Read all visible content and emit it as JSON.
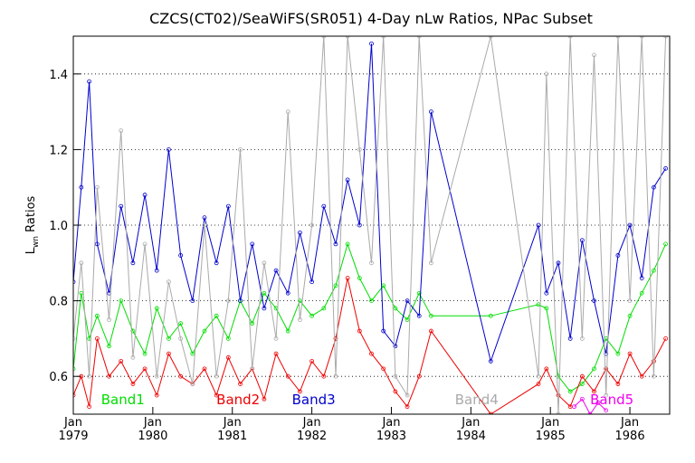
{
  "chart_data": {
    "type": "line",
    "title": "CZCS(CT02)/SeaWiFS(SR051) 4-Day nLw Ratios, NPac Subset",
    "ylabel_main": "L",
    "ylabel_sub": "wn",
    "ylabel_rest": " Ratios",
    "ylim": [
      0.5,
      1.5
    ],
    "xlim": [
      1979.0,
      1986.5
    ],
    "yticks": [
      {
        "value": 0.6,
        "label": "0.6"
      },
      {
        "value": 0.8,
        "label": "0.8"
      },
      {
        "value": 1.0,
        "label": "1.0"
      },
      {
        "value": 1.2,
        "label": "1.2"
      },
      {
        "value": 1.4,
        "label": "1.4"
      }
    ],
    "xticks": [
      {
        "value": 1979,
        "month": "Jan",
        "year": "1979"
      },
      {
        "value": 1980,
        "month": "Jan",
        "year": "1980"
      },
      {
        "value": 1981,
        "month": "Jan",
        "year": "1981"
      },
      {
        "value": 1982,
        "month": "Jan",
        "year": "1982"
      },
      {
        "value": 1983,
        "month": "Jan",
        "year": "1983"
      },
      {
        "value": 1984,
        "month": "Jan",
        "year": "1984"
      },
      {
        "value": 1985,
        "month": "Jan",
        "year": "1985"
      },
      {
        "value": 1986,
        "month": "Jan",
        "year": "1986"
      }
    ],
    "grid": true,
    "series": [
      {
        "name": "Band1",
        "color": "#00dd00",
        "legend_x": 1979.35,
        "x": [
          1979.0,
          1979.1,
          1979.2,
          1979.3,
          1979.45,
          1979.6,
          1979.75,
          1979.9,
          1980.05,
          1980.2,
          1980.35,
          1980.5,
          1980.65,
          1980.8,
          1980.95,
          1981.1,
          1981.25,
          1981.4,
          1981.55,
          1981.7,
          1981.85,
          1982.0,
          1982.15,
          1982.3,
          1982.45,
          1982.6,
          1982.75,
          1982.9,
          1983.05,
          1983.2,
          1983.35,
          1983.5,
          1984.25,
          1984.85,
          1984.95,
          1985.1,
          1985.25,
          1985.4,
          1985.55,
          1985.7,
          1985.85,
          1986.0,
          1986.15,
          1986.3,
          1986.45
        ],
        "y": [
          0.62,
          0.82,
          0.7,
          0.76,
          0.68,
          0.8,
          0.72,
          0.66,
          0.78,
          0.7,
          0.74,
          0.66,
          0.72,
          0.76,
          0.7,
          0.8,
          0.74,
          0.82,
          0.78,
          0.72,
          0.8,
          0.76,
          0.78,
          0.84,
          0.95,
          0.86,
          0.8,
          0.84,
          0.78,
          0.75,
          0.82,
          0.76,
          0.76,
          0.79,
          0.78,
          0.6,
          0.56,
          0.58,
          0.62,
          0.7,
          0.66,
          0.76,
          0.82,
          0.88,
          0.95
        ]
      },
      {
        "name": "Band2",
        "color": "#ee0000",
        "legend_x": 1980.8,
        "x": [
          1979.0,
          1979.1,
          1979.2,
          1979.3,
          1979.45,
          1979.6,
          1979.75,
          1979.9,
          1980.05,
          1980.2,
          1980.35,
          1980.5,
          1980.65,
          1980.8,
          1980.95,
          1981.1,
          1981.25,
          1981.4,
          1981.55,
          1981.7,
          1981.85,
          1982.0,
          1982.15,
          1982.3,
          1982.45,
          1982.6,
          1982.75,
          1982.9,
          1983.05,
          1983.2,
          1983.35,
          1983.5,
          1984.25,
          1984.85,
          1984.95,
          1985.1,
          1985.25,
          1985.4,
          1985.55,
          1985.7,
          1985.85,
          1986.0,
          1986.15,
          1986.3,
          1986.45
        ],
        "y": [
          0.55,
          0.6,
          0.52,
          0.7,
          0.6,
          0.64,
          0.58,
          0.62,
          0.55,
          0.66,
          0.6,
          0.58,
          0.62,
          0.55,
          0.65,
          0.58,
          0.62,
          0.54,
          0.66,
          0.6,
          0.56,
          0.64,
          0.6,
          0.7,
          0.86,
          0.72,
          0.66,
          0.62,
          0.56,
          0.52,
          0.6,
          0.72,
          0.5,
          0.58,
          0.62,
          0.55,
          0.52,
          0.6,
          0.56,
          0.62,
          0.58,
          0.66,
          0.6,
          0.64,
          0.7
        ]
      },
      {
        "name": "Band3",
        "color": "#0000cc",
        "legend_x": 1981.75,
        "x": [
          1979.0,
          1979.1,
          1979.2,
          1979.3,
          1979.45,
          1979.6,
          1979.75,
          1979.9,
          1980.05,
          1980.2,
          1980.35,
          1980.5,
          1980.65,
          1980.8,
          1980.95,
          1981.1,
          1981.25,
          1981.4,
          1981.55,
          1981.7,
          1981.85,
          1982.0,
          1982.15,
          1982.3,
          1982.45,
          1982.6,
          1982.75,
          1982.9,
          1983.05,
          1983.2,
          1983.35,
          1983.5,
          1984.25,
          1984.85,
          1984.95,
          1985.1,
          1985.25,
          1985.4,
          1985.55,
          1985.7,
          1985.85,
          1986.0,
          1986.15,
          1986.3,
          1986.45
        ],
        "y": [
          0.85,
          1.1,
          1.38,
          0.95,
          0.82,
          1.05,
          0.9,
          1.08,
          0.88,
          1.2,
          0.92,
          0.8,
          1.02,
          0.9,
          1.05,
          0.8,
          0.95,
          0.78,
          0.88,
          0.82,
          0.98,
          0.85,
          1.05,
          0.95,
          1.12,
          1.0,
          1.48,
          0.72,
          0.68,
          0.8,
          0.76,
          1.3,
          0.64,
          1.0,
          0.82,
          0.9,
          0.7,
          0.96,
          0.8,
          0.66,
          0.92,
          1.0,
          0.86,
          1.1,
          1.15
        ]
      },
      {
        "name": "Band4",
        "color": "#aaaaaa",
        "legend_x": 1983.8,
        "x": [
          1979.0,
          1979.1,
          1979.2,
          1979.3,
          1979.45,
          1979.6,
          1979.75,
          1979.9,
          1980.05,
          1980.2,
          1980.35,
          1980.5,
          1980.65,
          1980.8,
          1980.95,
          1981.1,
          1981.25,
          1981.4,
          1981.55,
          1981.7,
          1981.85,
          1982.0,
          1982.15,
          1982.3,
          1982.45,
          1982.6,
          1982.75,
          1982.9,
          1983.05,
          1983.2,
          1983.35,
          1983.5,
          1984.25,
          1984.85,
          1984.95,
          1985.1,
          1985.25,
          1985.4,
          1985.55,
          1985.7,
          1985.85,
          1986.0,
          1986.15,
          1986.3,
          1986.45
        ],
        "y": [
          0.7,
          0.9,
          0.6,
          1.1,
          0.75,
          1.25,
          0.65,
          0.95,
          0.6,
          0.85,
          0.7,
          0.58,
          1.0,
          0.6,
          0.8,
          1.2,
          0.62,
          0.9,
          0.7,
          1.3,
          0.75,
          1.0,
          1.5,
          0.6,
          1.5,
          1.2,
          0.9,
          1.5,
          0.6,
          0.55,
          1.5,
          0.9,
          1.5,
          0.6,
          1.4,
          0.5,
          1.5,
          0.7,
          1.45,
          0.55,
          1.5,
          0.8,
          1.5,
          0.6,
          1.5
        ]
      },
      {
        "name": "Band5",
        "color": "#ee00ee",
        "legend_x": 1985.5,
        "x": [
          1985.3,
          1985.4,
          1985.5,
          1985.6,
          1985.7
        ],
        "y": [
          0.52,
          0.54,
          0.5,
          0.53,
          0.51
        ]
      }
    ]
  }
}
